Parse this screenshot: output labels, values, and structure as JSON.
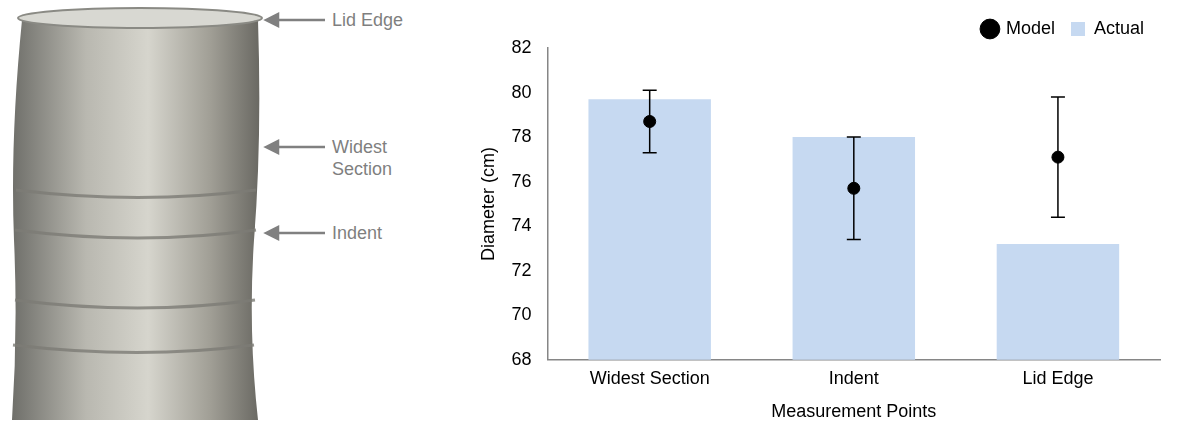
{
  "chart_data": {
    "type": "bar",
    "annotations": [
      "Lid Edge",
      "Widest Section",
      "Indent"
    ],
    "x_label": "Measurement Points",
    "y_label": "Diameter (cm)",
    "categories": [
      "Widest Section",
      "Indent",
      "Lid Edge"
    ],
    "series": [
      {
        "name": "Actual",
        "type": "bar",
        "color": "#c6d9f1",
        "values": [
          79.7,
          78.0,
          73.2
        ]
      },
      {
        "name": "Model",
        "type": "scatter",
        "color": "#000000",
        "marker": "circle",
        "values": [
          78.7,
          75.7,
          77.1
        ],
        "errors": [
          1.4,
          2.3,
          2.7
        ]
      }
    ],
    "ylim": [
      68,
      82
    ],
    "yticks": [
      68,
      70,
      72,
      74,
      76,
      78,
      80,
      82
    ],
    "grid": false,
    "legend": "top right"
  }
}
